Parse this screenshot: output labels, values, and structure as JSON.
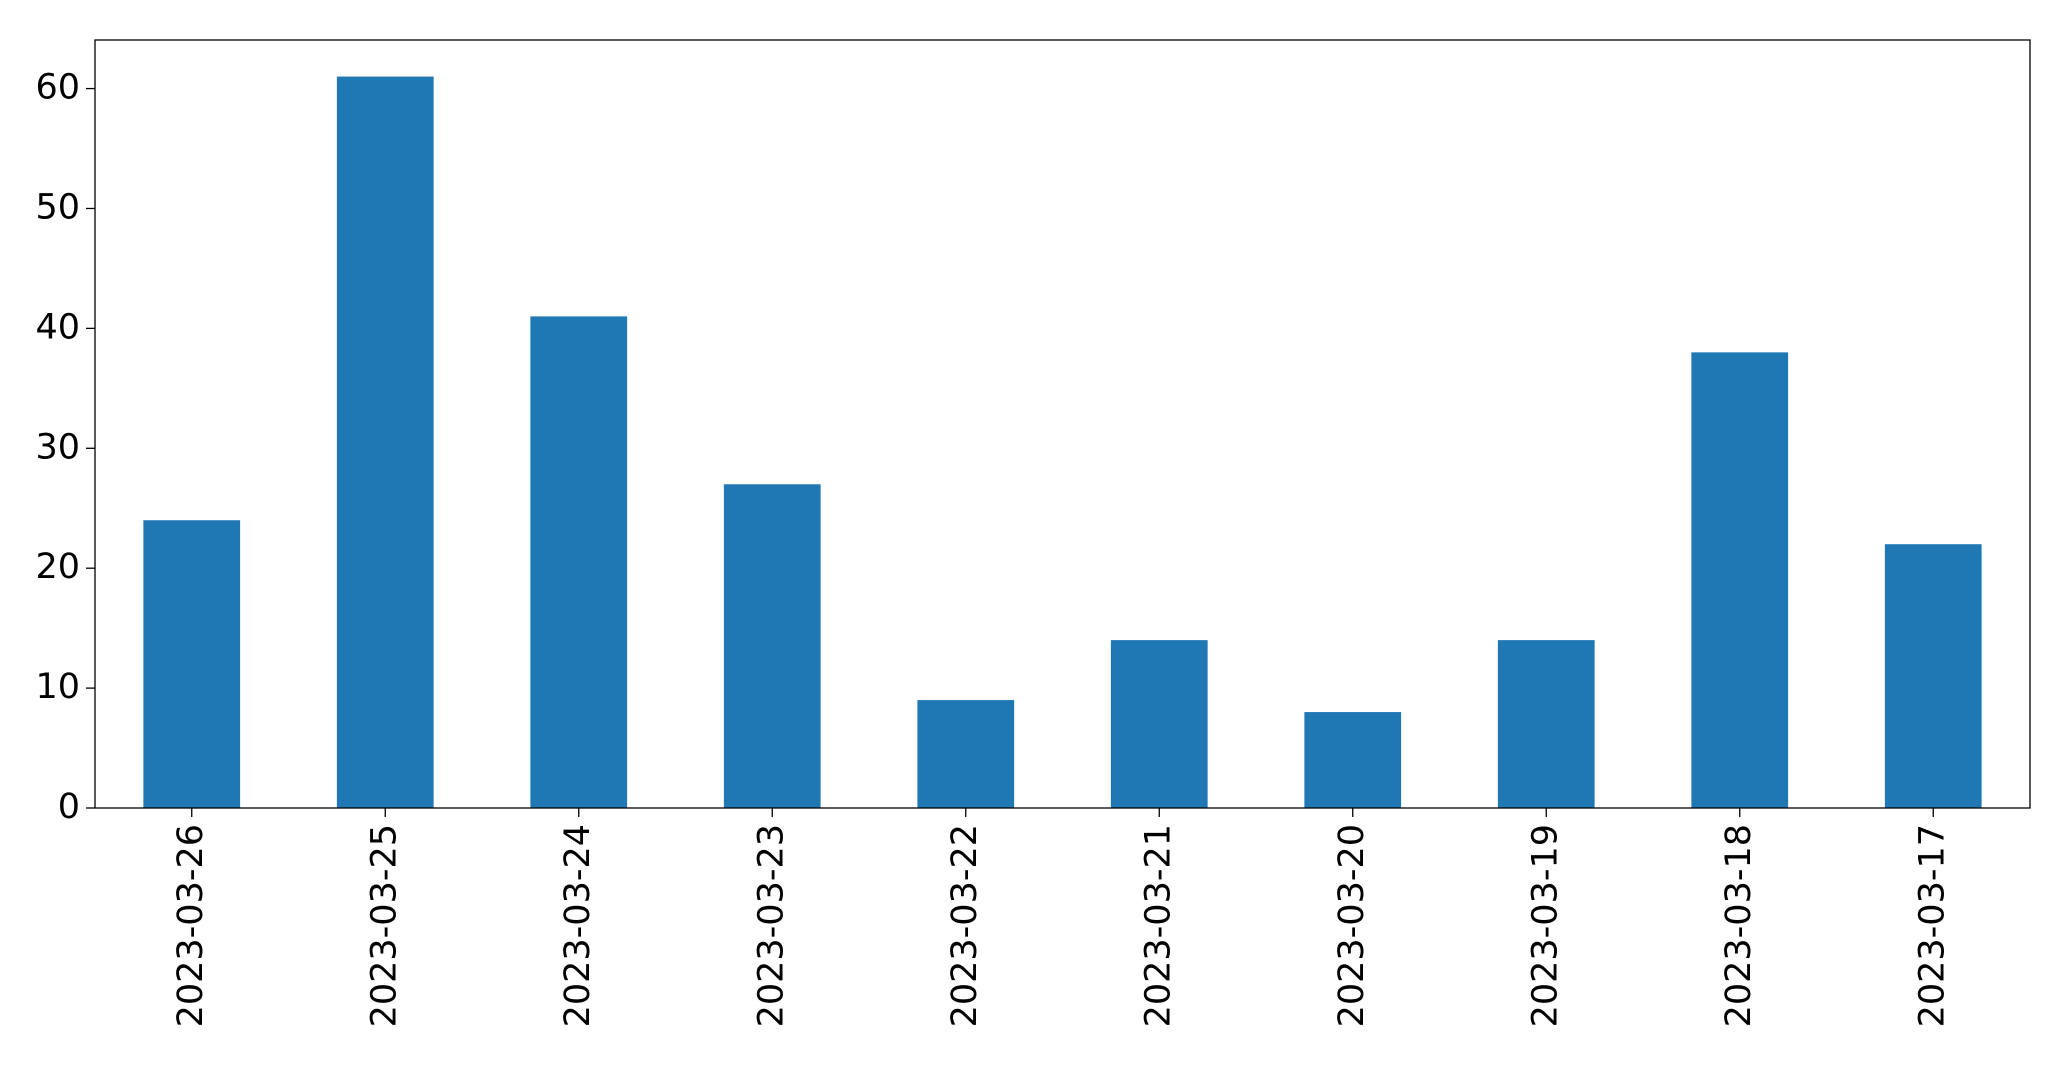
{
  "chart_data": {
    "type": "bar",
    "categories": [
      "2023-03-26",
      "2023-03-25",
      "2023-03-24",
      "2023-03-23",
      "2023-03-22",
      "2023-03-21",
      "2023-03-20",
      "2023-03-19",
      "2023-03-18",
      "2023-03-17"
    ],
    "values": [
      24,
      61,
      41,
      27,
      9,
      14,
      8,
      14,
      38,
      22
    ],
    "color": "#1f77b4",
    "ylim": [
      0,
      64.05
    ],
    "yticks": [
      0,
      10,
      20,
      30,
      40,
      50,
      60
    ],
    "grid": false
  }
}
